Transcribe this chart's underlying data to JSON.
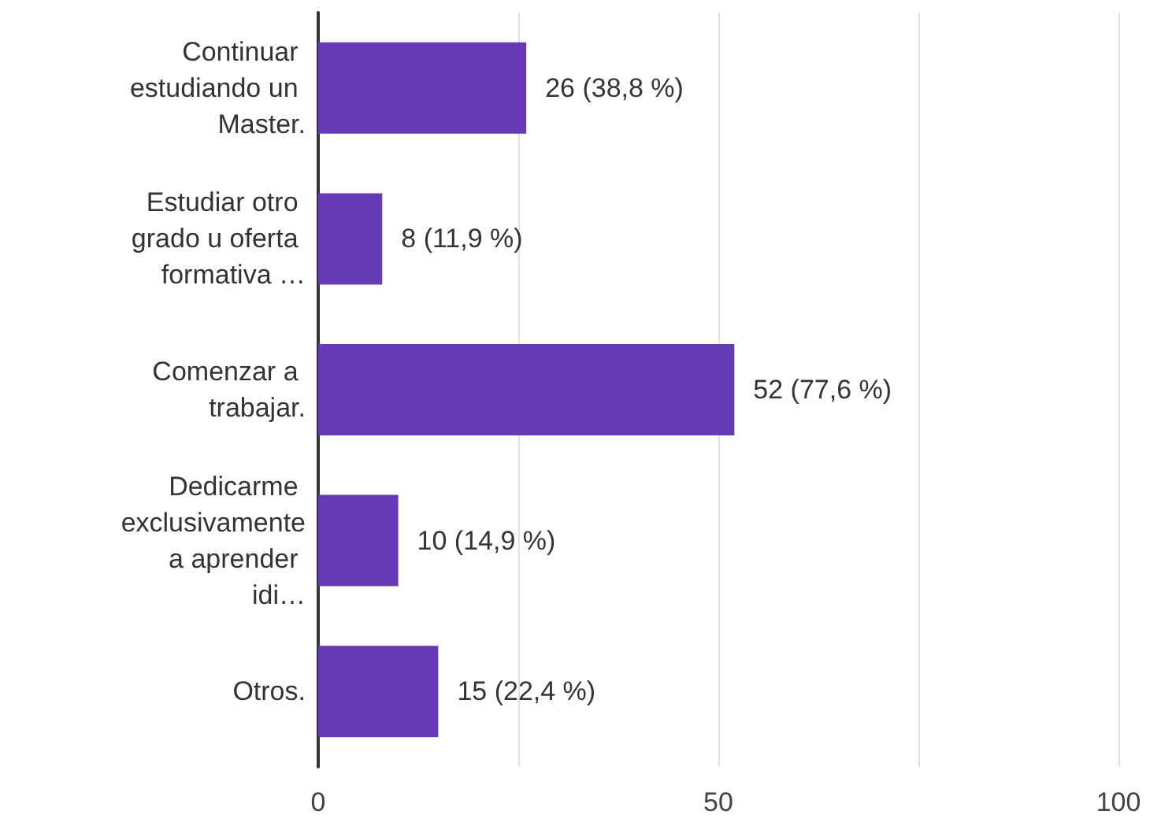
{
  "chart_data": {
    "type": "bar",
    "orientation": "horizontal",
    "categories": [
      "Continuar estudiando un Master.",
      "Estudiar otro grado u oferta formativa …",
      "Comenzar a trabajar.",
      "Dedicarme exclusivamente a aprender idi…",
      "Otros."
    ],
    "values": [
      26,
      8,
      52,
      10,
      15
    ],
    "value_labels": [
      "26 (38,8 %)",
      "8 (11,9 %)",
      "52 (77,6 %)",
      "10 (14,9 %)",
      "15 (22,4 %)"
    ],
    "color": "#673ab7",
    "xlim": [
      0,
      100
    ],
    "xticks": [
      0,
      {
        "value": 25,
        "label": null
      },
      50,
      {
        "value": 75,
        "label": null
      },
      100
    ],
    "grid": "x"
  }
}
